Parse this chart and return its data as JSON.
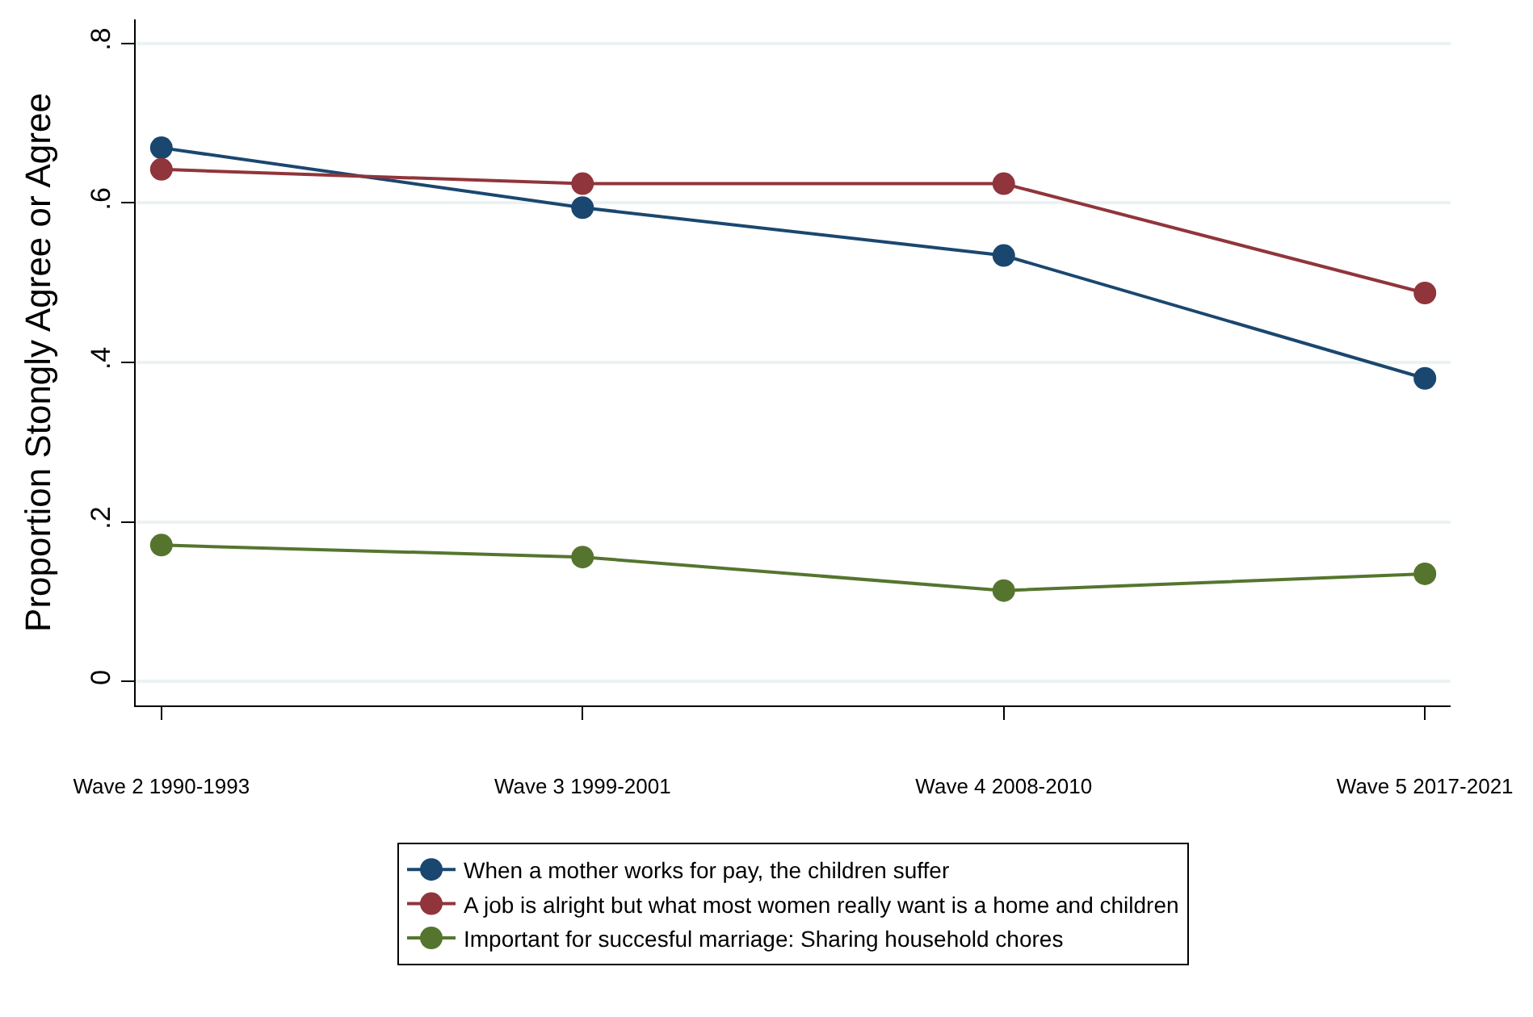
{
  "chart_data": {
    "type": "line",
    "ylabel": "Proportion Stongly Agree or Agree",
    "categories": [
      "Wave 2 1990-1993",
      "Wave 3 1999-2001",
      "Wave 4 2008-2010",
      "Wave 5 2017-2021"
    ],
    "series": [
      {
        "name": "When a mother works for pay, the children suffer",
        "color": "#1a476f",
        "values": [
          0.669,
          0.594,
          0.534,
          0.38
        ]
      },
      {
        "name": "A job is alright but what most women really want is a home and children",
        "color": "#90353b",
        "values": [
          0.642,
          0.624,
          0.624,
          0.487
        ]
      },
      {
        "name": "Important for succesful marriage: Sharing household chores",
        "color": "#55752f",
        "values": [
          0.171,
          0.156,
          0.114,
          0.135
        ]
      }
    ],
    "ylim": [
      -0.03,
      0.83
    ],
    "yticks": [
      0,
      {
        "value": 0.2,
        "label": ".2"
      },
      {
        "value": 0.4,
        "label": ".4"
      },
      {
        "value": 0.6,
        "label": ".6"
      },
      {
        "value": 0.8,
        "label": ".8"
      }
    ],
    "grid": "y",
    "legend": "bottom",
    "marker": "circle",
    "line_style": "solid"
  }
}
